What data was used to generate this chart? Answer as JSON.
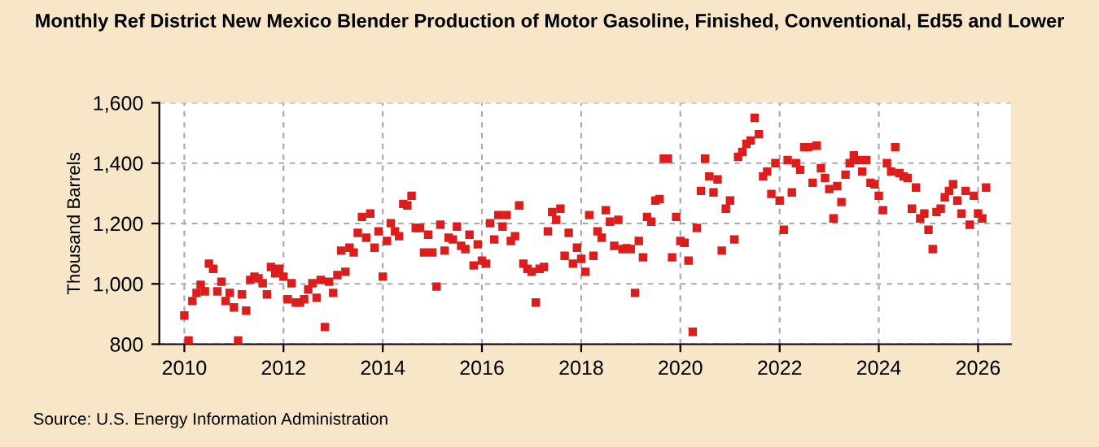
{
  "chart_data": {
    "type": "scatter",
    "title": "Monthly Ref District New Mexico Blender Production of Motor Gasoline, Finished, Conventional, Ed55 and Lower",
    "ylabel": "Thousand Barrels",
    "annotations": [
      "Source: U.S. Energy Information Administration"
    ],
    "series": [
      {
        "color": "#dd1c1c",
        "x": [
          "2010-01",
          "2010-02",
          "2010-03",
          "2010-04",
          "2010-05",
          "2010-06",
          "2010-07",
          "2010-08",
          "2010-09",
          "2010-10",
          "2010-11",
          "2010-12",
          "2011-01",
          "2011-02",
          "2011-03",
          "2011-04",
          "2011-05",
          "2011-06",
          "2011-07",
          "2011-08",
          "2011-09",
          "2011-10",
          "2011-11",
          "2011-12",
          "2012-01",
          "2012-02",
          "2012-03",
          "2012-04",
          "2012-05",
          "2012-06",
          "2012-07",
          "2012-08",
          "2012-09",
          "2012-10",
          "2012-11",
          "2012-12",
          "2013-01",
          "2013-02",
          "2013-03",
          "2013-04",
          "2013-05",
          "2013-06",
          "2013-07",
          "2013-08",
          "2013-09",
          "2013-10",
          "2013-11",
          "2013-12",
          "2014-01",
          "2014-02",
          "2014-03",
          "2014-04",
          "2014-05",
          "2014-06",
          "2014-07",
          "2014-08",
          "2014-09",
          "2014-10",
          "2014-11",
          "2014-12",
          "2015-01",
          "2015-02",
          "2015-03",
          "2015-04",
          "2015-05",
          "2015-06",
          "2015-07",
          "2015-08",
          "2015-09",
          "2015-10",
          "2015-11",
          "2015-12",
          "2016-01",
          "2016-02",
          "2016-03",
          "2016-04",
          "2016-05",
          "2016-06",
          "2016-07",
          "2016-08",
          "2016-09",
          "2016-10",
          "2016-11",
          "2016-12",
          "2017-01",
          "2017-02",
          "2017-03",
          "2017-04",
          "2017-05",
          "2017-06",
          "2017-07",
          "2017-08",
          "2017-09",
          "2017-10",
          "2017-11",
          "2017-12",
          "2018-01",
          "2018-02",
          "2018-03",
          "2018-04",
          "2018-05",
          "2018-06",
          "2018-07",
          "2018-08",
          "2018-09",
          "2018-10",
          "2018-11",
          "2018-12",
          "2019-01",
          "2019-02",
          "2019-03",
          "2019-04",
          "2019-05",
          "2019-06",
          "2019-07",
          "2019-08",
          "2019-09",
          "2019-10",
          "2019-11",
          "2019-12",
          "2020-01",
          "2020-02",
          "2020-03",
          "2020-04",
          "2020-05",
          "2020-06",
          "2020-07",
          "2020-08",
          "2020-09",
          "2020-10",
          "2020-11",
          "2020-12",
          "2021-01",
          "2021-02",
          "2021-03",
          "2021-04",
          "2021-05",
          "2021-06",
          "2021-07",
          "2021-08",
          "2021-09",
          "2021-10",
          "2021-11",
          "2021-12",
          "2022-01",
          "2022-02",
          "2022-03",
          "2022-04",
          "2022-05",
          "2022-06",
          "2022-07",
          "2022-08",
          "2022-09",
          "2022-10",
          "2022-11",
          "2022-12",
          "2023-01",
          "2023-02",
          "2023-03",
          "2023-04",
          "2023-05",
          "2023-06",
          "2023-07",
          "2023-08",
          "2023-09",
          "2023-10",
          "2023-11",
          "2023-12",
          "2024-01",
          "2024-02",
          "2024-03",
          "2024-04",
          "2024-05",
          "2024-06",
          "2024-07",
          "2024-08",
          "2024-09",
          "2024-10",
          "2024-11",
          "2024-12",
          "2025-01",
          "2025-02",
          "2025-03",
          "2025-04",
          "2025-05",
          "2025-06",
          "2025-07",
          "2025-08",
          "2025-09",
          "2025-10",
          "2025-11",
          "2025-12",
          "2026-01",
          "2026-02",
          "2026-03"
        ],
        "values": [
          895,
          812,
          943,
          970,
          997,
          975,
          1067,
          1050,
          975,
          1007,
          943,
          970,
          922,
          812,
          965,
          911,
          1013,
          1024,
          1018,
          1002,
          965,
          1056,
          1035,
          1050,
          1024,
          949,
          1002,
          938,
          938,
          949,
          981,
          1002,
          954,
          1013,
          857,
          1007,
          970,
          1029,
          1110,
          1040,
          1120,
          1104,
          1169,
          1222,
          1153,
          1233,
          1120,
          1174,
          1024,
          1142,
          1201,
          1174,
          1158,
          1265,
          1260,
          1292,
          1185,
          1185,
          1104,
          1163,
          1104,
          991,
          1196,
          1110,
          1153,
          1147,
          1190,
          1126,
          1115,
          1163,
          1061,
          1131,
          1077,
          1067,
          1201,
          1147,
          1228,
          1190,
          1228,
          1142,
          1158,
          1260,
          1067,
          1050,
          1040,
          938,
          1050,
          1056,
          1174,
          1238,
          1212,
          1249,
          1093,
          1169,
          1067,
          1120,
          1083,
          1040,
          1228,
          1093,
          1174,
          1153,
          1244,
          1206,
          1126,
          1212,
          1115,
          1118,
          1115,
          970,
          1142,
          1088,
          1222,
          1206,
          1276,
          1281,
          1415,
          1415,
          1088,
          1222,
          1142,
          1136,
          1077,
          841,
          1185,
          1308,
          1415,
          1356,
          1303,
          1346,
          1110,
          1249,
          1276,
          1147,
          1421,
          1437,
          1464,
          1475,
          1550,
          1496,
          1356,
          1372,
          1298,
          1400,
          1276,
          1179,
          1410,
          1303,
          1400,
          1378,
          1453,
          1453,
          1335,
          1458,
          1383,
          1351,
          1314,
          1217,
          1324,
          1271,
          1362,
          1400,
          1426,
          1410,
          1372,
          1410,
          1335,
          1330,
          1292,
          1244,
          1400,
          1372,
          1453,
          1367,
          1356,
          1351,
          1249,
          1319,
          1217,
          1233,
          1179,
          1115,
          1238,
          1249,
          1287,
          1308,
          1330,
          1276,
          1233,
          1308,
          1196,
          1292,
          1233,
          1217,
          1319
        ]
      }
    ],
    "marker": "square",
    "xlim": [
      "2009-07",
      "2026-09"
    ],
    "xticks": [
      "2010",
      "2012",
      "2014",
      "2016",
      "2018",
      "2020",
      "2022",
      "2024",
      "2026"
    ],
    "ylim": [
      800,
      1600
    ],
    "yticks": [
      800,
      {
        "value": 1000,
        "label": "1,000"
      },
      {
        "value": 1200,
        "label": "1,200"
      },
      {
        "value": 1400,
        "label": "1,400"
      },
      {
        "value": 1600,
        "label": "1,600"
      }
    ],
    "grid": true
  }
}
